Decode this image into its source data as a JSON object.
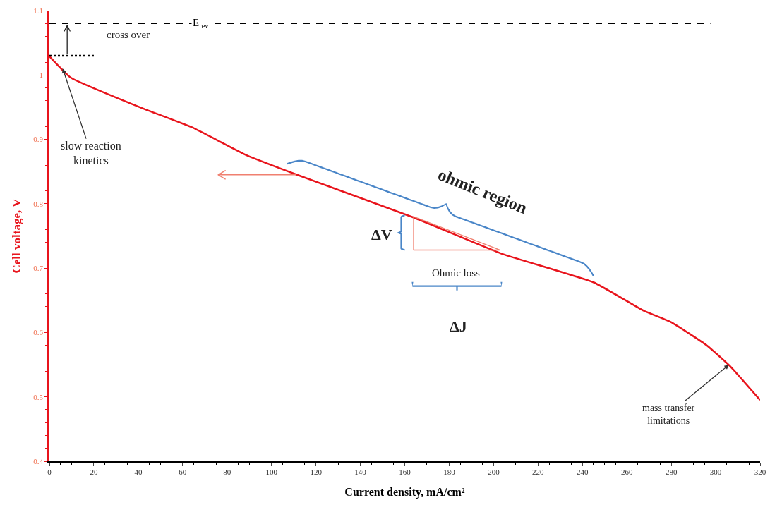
{
  "chart_data": {
    "type": "line",
    "xlabel": "Current density, mA/cm²",
    "ylabel": "Cell voltage, V",
    "xlim": [
      0,
      320
    ],
    "xticks": [
      0,
      20,
      40,
      60,
      80,
      100,
      120,
      140,
      160,
      180,
      200,
      220,
      240,
      260,
      280,
      300,
      320
    ],
    "ylim": [
      0.4,
      1.1
    ],
    "yticks": [
      0.4,
      0.5,
      0.6,
      0.7,
      0.8,
      0.9,
      1,
      1.1
    ],
    "grid": false,
    "series": [
      {
        "color": "#e8141c",
        "x": [
          0,
          9.6,
          41.4,
          64,
          89,
          111.5,
          163.7,
          204,
          245,
          267.5,
          280,
          296,
          306.7,
          320
        ],
        "values": [
          1.029,
          0.996,
          0.949,
          0.919,
          0.875,
          0.845,
          0.779,
          0.722,
          0.678,
          0.634,
          0.616,
          0.58,
          0.547,
          0.495
        ]
      },
      {
        "color": "#000000",
        "line_style": "dotted",
        "x": [
          0,
          20
        ],
        "values": [
          1.03,
          1.03
        ]
      }
    ],
    "ref_lines": [
      {
        "axis": "y",
        "value": 1.08,
        "label": "E$_{rev}$",
        "color": "#000000",
        "line_style": "dashed"
      }
    ],
    "annotations": [
      "cross over",
      {
        "text": "slow reaction\nkinetics",
        "x": 6,
        "y": 1.01
      },
      "ohmic region",
      "ΔV",
      "Ohmic loss",
      "ΔJ",
      {
        "text": "mass transfer\nlimitations",
        "x": 306,
        "y": 0.55
      }
    ]
  }
}
